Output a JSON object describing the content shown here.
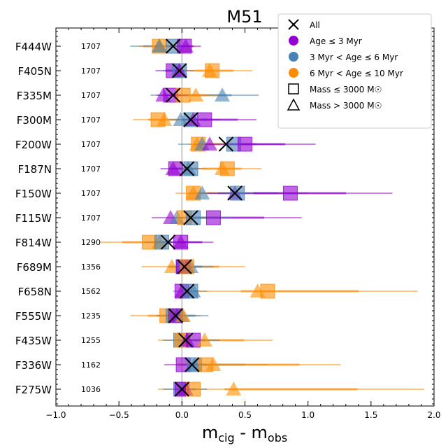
{
  "chart_data": {
    "type": "scatter",
    "title": "M51",
    "xlabel_main": "m",
    "xlabel_sub1": "cig",
    "xlabel_mid": " - m",
    "xlabel_sub2": "obs",
    "xlim": [
      -1.0,
      2.0
    ],
    "xticks": [
      "−1.0",
      "−0.5",
      "0.0",
      "0.5",
      "1.0",
      "1.5",
      "2.0"
    ],
    "xtick_values": [
      -1.0,
      -0.5,
      0.0,
      0.5,
      1.0,
      1.5,
      2.0
    ],
    "reference_line": 0.0,
    "colors": {
      "all": "#000000",
      "young": "#9400d3",
      "mid": "#4682b4",
      "old": "#ff8c00"
    },
    "legend": {
      "placement": "top-right",
      "entries": [
        {
          "label": "All",
          "marker": "x",
          "group": "all"
        },
        {
          "label": "Age ≤ 3 Myr",
          "marker": "circle",
          "group": "young"
        },
        {
          "label": "3 Myr < Age ≤ 6 Myr",
          "marker": "circle",
          "group": "mid"
        },
        {
          "label": "6 Myr < Age ≤ 10 Myr",
          "marker": "circle",
          "group": "old"
        },
        {
          "label": "Mass ≤ 3000 M☉",
          "marker": "square",
          "group": "none"
        },
        {
          "label": "Mass > 3000 M☉",
          "marker": "triangle",
          "group": "none"
        }
      ]
    },
    "rows": [
      {
        "filter": "F444W",
        "n": "1707",
        "all": -0.07,
        "points": [
          [
            "old",
            "s",
            -0.18
          ],
          [
            "old",
            "t",
            -0.18
          ],
          [
            "mid",
            "t",
            -0.18
          ],
          [
            "mid",
            "s",
            -0.07
          ],
          [
            "young",
            "s",
            0.02
          ],
          [
            "young",
            "t",
            0.03
          ]
        ],
        "ranges": [
          [
            "mid",
            -0.41,
            0.0
          ],
          [
            "old",
            -0.35,
            0.1
          ],
          [
            "young",
            -0.1,
            0.15
          ]
        ]
      },
      {
        "filter": "F405N",
        "n": "1707",
        "all": -0.02,
        "points": [
          [
            "young",
            "s",
            -0.07
          ],
          [
            "mid",
            "s",
            -0.02
          ],
          [
            "young",
            "t",
            -0.02
          ],
          [
            "old",
            "s",
            0.24
          ],
          [
            "old",
            "t",
            0.22
          ]
        ],
        "ranges": [
          [
            "young",
            -0.21,
            0.1
          ],
          [
            "mid",
            -0.15,
            0.1
          ],
          [
            "old",
            -0.05,
            0.56
          ]
        ]
      },
      {
        "filter": "F335M",
        "n": "1707",
        "all": -0.07,
        "points": [
          [
            "young",
            "t",
            -0.15
          ],
          [
            "young",
            "s",
            -0.09
          ],
          [
            "old",
            "s",
            0.01
          ],
          [
            "old",
            "t",
            0.11
          ],
          [
            "mid",
            "t",
            0.32
          ]
        ],
        "ranges": [
          [
            "mid",
            -0.25,
            0.61
          ],
          [
            "old",
            -0.1,
            0.3
          ],
          [
            "young",
            -0.2,
            0.05
          ]
        ]
      },
      {
        "filter": "F300M",
        "n": "1707",
        "all": 0.07,
        "points": [
          [
            "old",
            "s",
            -0.19
          ],
          [
            "old",
            "t",
            -0.14
          ],
          [
            "mid",
            "t",
            -0.01
          ],
          [
            "mid",
            "s",
            0.07
          ],
          [
            "young",
            "t",
            0.09
          ],
          [
            "young",
            "s",
            0.18
          ]
        ],
        "ranges": [
          [
            "old",
            -0.39,
            0.1
          ],
          [
            "mid",
            -0.1,
            0.3
          ],
          [
            "young",
            0.0,
            0.59
          ]
        ]
      },
      {
        "filter": "F200W",
        "n": "1707",
        "all": 0.35,
        "points": [
          [
            "old",
            "s",
            0.13
          ],
          [
            "old",
            "t",
            0.12
          ],
          [
            "mid",
            "t",
            0.16
          ],
          [
            "young",
            "t",
            0.22
          ],
          [
            "mid",
            "s",
            0.41
          ],
          [
            "young",
            "s",
            0.5
          ]
        ],
        "ranges": [
          [
            "mid",
            -0.03,
            0.8
          ],
          [
            "old",
            0.05,
            0.4
          ],
          [
            "young",
            0.1,
            1.06
          ]
        ]
      },
      {
        "filter": "F187N",
        "n": "1707",
        "all": 0.04,
        "points": [
          [
            "young",
            "t",
            -0.07
          ],
          [
            "young",
            "s",
            -0.05
          ],
          [
            "mid",
            "s",
            0.07
          ],
          [
            "mid",
            "t",
            0.05
          ],
          [
            "old",
            "t",
            0.32
          ],
          [
            "old",
            "s",
            0.36
          ]
        ],
        "ranges": [
          [
            "young",
            -0.17,
            0.15
          ],
          [
            "mid",
            -0.1,
            0.2
          ],
          [
            "old",
            0.0,
            0.63
          ]
        ]
      },
      {
        "filter": "F150W",
        "n": "1707",
        "all": 0.42,
        "points": [
          [
            "old",
            "s",
            0.09
          ],
          [
            "old",
            "t",
            0.09
          ],
          [
            "mid",
            "t",
            0.16
          ],
          [
            "young",
            "t",
            0.42
          ],
          [
            "mid",
            "s",
            0.44
          ],
          [
            "young",
            "s",
            0.86
          ]
        ],
        "ranges": [
          [
            "old",
            -0.05,
            0.6
          ],
          [
            "mid",
            0.05,
            1.0
          ],
          [
            "young",
            0.2,
            1.67
          ]
        ]
      },
      {
        "filter": "F115W",
        "n": "1707",
        "all": 0.07,
        "points": [
          [
            "young",
            "t",
            -0.09
          ],
          [
            "mid",
            "t",
            -0.04
          ],
          [
            "old",
            "s",
            0.02
          ],
          [
            "mid",
            "s",
            0.09
          ],
          [
            "young",
            "s",
            0.25
          ]
        ],
        "ranges": [
          [
            "young",
            -0.24,
            0.95
          ],
          [
            "old",
            -0.1,
            0.3
          ],
          [
            "mid",
            -0.05,
            0.4
          ]
        ]
      },
      {
        "filter": "F814W",
        "n": "1290",
        "all": -0.11,
        "points": [
          [
            "old",
            "s",
            -0.26
          ],
          [
            "old",
            "t",
            -0.18
          ],
          [
            "mid",
            "s",
            -0.16
          ],
          [
            "young",
            "t",
            -0.01
          ],
          [
            "young",
            "s",
            -0.01
          ]
        ],
        "ranges": [
          [
            "old",
            -0.65,
            0.05
          ],
          [
            "mid",
            -0.3,
            0.15
          ],
          [
            "young",
            -0.1,
            0.25
          ]
        ]
      },
      {
        "filter": "F689M",
        "n": "1356",
        "all": 0.02,
        "points": [
          [
            "old",
            "t",
            -0.08
          ],
          [
            "blue",
            "s",
            0.01
          ],
          [
            "mid",
            "s",
            0.01
          ],
          [
            "young",
            "s",
            0.01
          ],
          [
            "young",
            "t",
            0.04
          ],
          [
            "mid",
            "t",
            0.07
          ],
          [
            "old",
            "s",
            0.04
          ]
        ],
        "ranges": [
          [
            "old",
            -0.32,
            0.5
          ],
          [
            "mid",
            -0.1,
            0.25
          ]
        ]
      },
      {
        "filter": "F658N",
        "n": "1562",
        "all": 0.04,
        "points": [
          [
            "young",
            "s",
            0.0
          ],
          [
            "young",
            "t",
            0.0
          ],
          [
            "mid",
            "s",
            0.07
          ],
          [
            "mid",
            "t",
            0.09
          ],
          [
            "old",
            "t",
            0.6
          ],
          [
            "old",
            "s",
            0.68
          ]
        ],
        "ranges": [
          [
            "mid",
            -0.07,
            0.2
          ],
          [
            "old",
            0.0,
            1.87
          ]
        ]
      },
      {
        "filter": "F555W",
        "n": "1235",
        "all": -0.05,
        "points": [
          [
            "old",
            "s",
            -0.12
          ],
          [
            "mid",
            "s",
            -0.07
          ],
          [
            "young",
            "s",
            -0.05
          ],
          [
            "young",
            "t",
            -0.04
          ],
          [
            "mid",
            "t",
            0.0
          ],
          [
            "old",
            "t",
            0.01
          ]
        ],
        "ranges": [
          [
            "old",
            -0.41,
            0.15
          ],
          [
            "mid",
            -0.2,
            0.21
          ]
        ]
      },
      {
        "filter": "F435W",
        "n": "1255",
        "all": 0.03,
        "points": [
          [
            "mid",
            "s",
            -0.01
          ],
          [
            "old",
            "s",
            0.0
          ],
          [
            "young",
            "s",
            0.09
          ],
          [
            "young",
            "t",
            0.04
          ],
          [
            "old",
            "t",
            0.18
          ]
        ],
        "ranges": [
          [
            "old",
            -0.19,
            0.72
          ],
          [
            "mid",
            -0.15,
            0.3
          ]
        ]
      },
      {
        "filter": "F336W",
        "n": "1162",
        "all": 0.08,
        "points": [
          [
            "young",
            "s",
            0.01
          ],
          [
            "mid",
            "s",
            0.1
          ],
          [
            "mid",
            "t",
            0.1
          ],
          [
            "old",
            "s",
            0.19
          ],
          [
            "old",
            "t",
            0.25
          ]
        ],
        "ranges": [
          [
            "young",
            -0.14,
            0.3
          ],
          [
            "mid",
            -0.05,
            0.68
          ],
          [
            "old",
            -0.05,
            1.26
          ]
        ]
      },
      {
        "filter": "F275W",
        "n": "1036",
        "all": 0.0,
        "points": [
          [
            "mid",
            "s",
            -0.01
          ],
          [
            "young",
            "t",
            0.03
          ],
          [
            "young",
            "s",
            0.0
          ],
          [
            "old",
            "s",
            0.09
          ],
          [
            "old",
            "t",
            0.41
          ]
        ],
        "ranges": [
          [
            "old",
            -0.19,
            1.92
          ],
          [
            "mid",
            -0.15,
            0.2
          ]
        ]
      }
    ]
  }
}
